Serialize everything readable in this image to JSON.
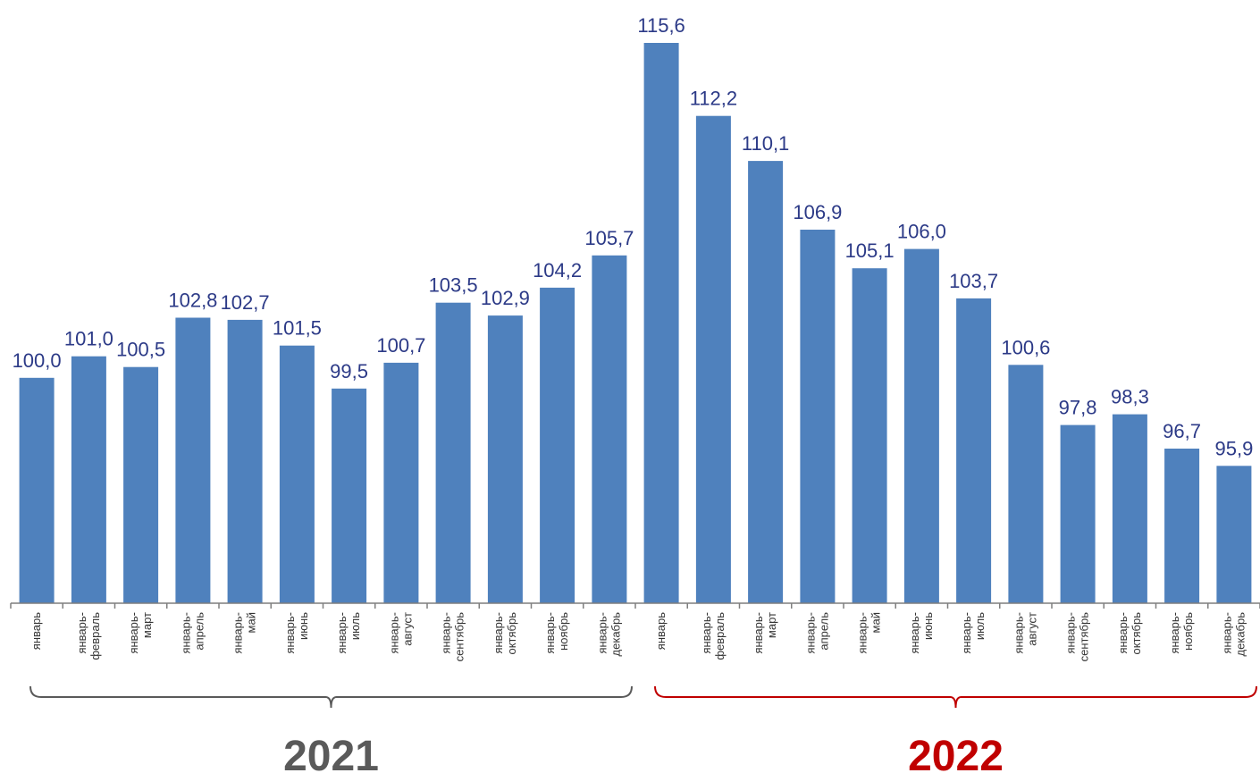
{
  "colors": {
    "bar": "#4f81bd",
    "value_label": "#2c3a87",
    "year_2021": "#5a5a5a",
    "year_2022": "#c00000",
    "axis": "#7f7f7f"
  },
  "chart_data": {
    "type": "bar",
    "categories": [
      "январь",
      "январь-\nфевраль",
      "январь-\nмарт",
      "январь-\nапрель",
      "январь-\nмай",
      "январь-\nиюнь",
      "январь-\nиюль",
      "январь-\nавгуст",
      "январь-\nсентябрь",
      "январь-\nоктябрь",
      "январь-\nноябрь",
      "январь-\nдекабрь",
      "январь",
      "январь-\nфевраль",
      "январь-\nмарт",
      "январь-\nапрель",
      "январь-\nмай",
      "январь-\nиюнь",
      "январь-\nиюль",
      "январь-\nавгуст",
      "январь-\nсентябрь",
      "январь-\nоктябрь",
      "январь-\nноябрь",
      "январь-\nдекабрь"
    ],
    "values": [
      100.0,
      101.0,
      100.5,
      102.8,
      102.7,
      101.5,
      99.5,
      100.7,
      103.5,
      102.9,
      104.2,
      105.7,
      115.6,
      112.2,
      110.1,
      106.9,
      105.1,
      106.0,
      103.7,
      100.6,
      97.8,
      98.3,
      96.7,
      95.9
    ],
    "value_labels": [
      "100,0",
      "101,0",
      "100,5",
      "102,8",
      "102,7",
      "101,5",
      "99,5",
      "100,7",
      "103,5",
      "102,9",
      "104,2",
      "105,7",
      "115,6",
      "112,2",
      "110,1",
      "106,9",
      "105,1",
      "106,0",
      "103,7",
      "100,6",
      "97,8",
      "98,3",
      "96,7",
      "95,9"
    ],
    "groups": [
      {
        "label": "2021",
        "start": 0,
        "end": 11
      },
      {
        "label": "2022",
        "start": 12,
        "end": 23
      }
    ],
    "title": "",
    "xlabel": "",
    "ylabel": "",
    "ylim": [
      89.5,
      115.6
    ],
    "grid": false,
    "legend": "none"
  }
}
